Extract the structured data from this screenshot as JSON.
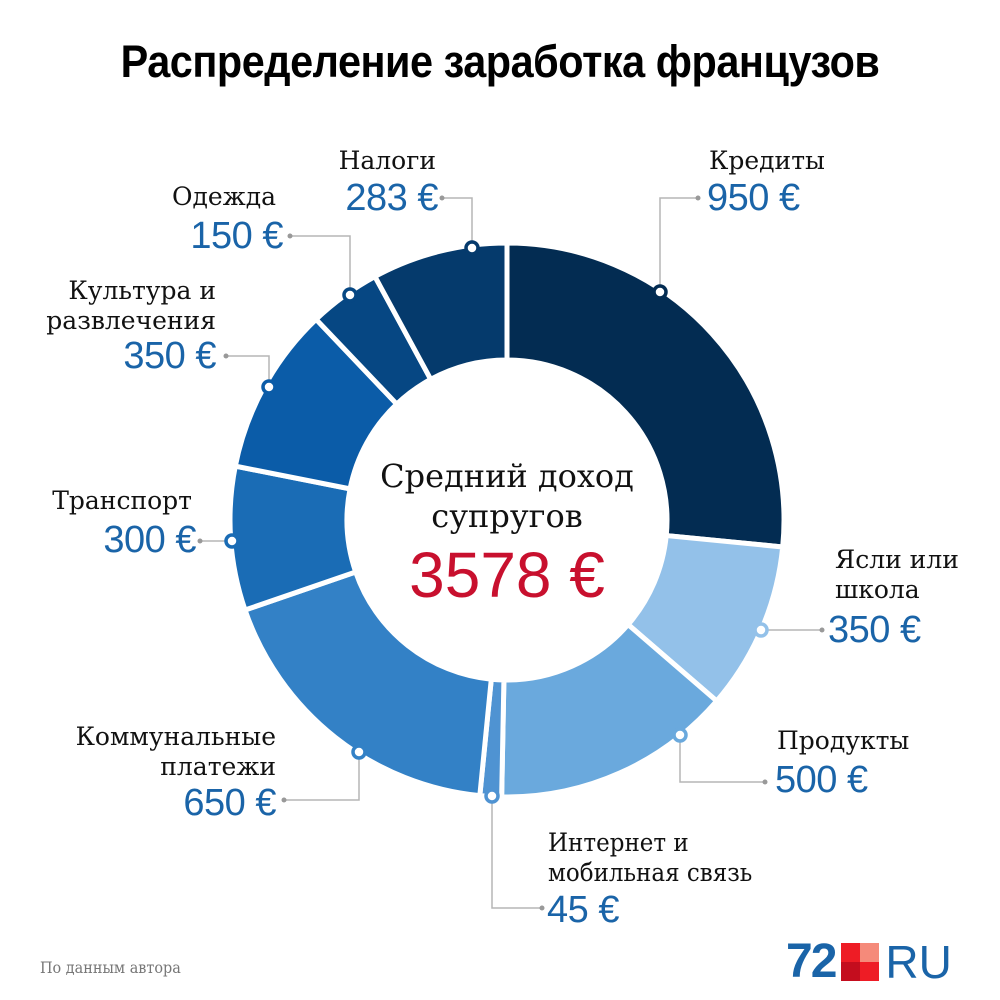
{
  "title": "Распределение заработка французов",
  "center": {
    "label_line1": "Средний доход",
    "label_line2": "супругов",
    "total": "3578 €"
  },
  "segments": [
    {
      "label": "Кредиты",
      "value_text": "950 €",
      "value": 950,
      "color": "#032c52"
    },
    {
      "label_line1": "Ясли или",
      "label_line2": "школа",
      "value_text": "350 €",
      "value": 350,
      "color": "#93c1e9"
    },
    {
      "label": "Продукты",
      "value_text": "500 €",
      "value": 500,
      "color": "#6aa9dd"
    },
    {
      "label_line1": "Интернет и",
      "label_line2": "мобильная связь",
      "value_text": "45 €",
      "value": 45,
      "color": "#4f93d2"
    },
    {
      "label_line1": "Коммунальные",
      "label_line2": "платежи",
      "value_text": "650 €",
      "value": 650,
      "color": "#3381c6"
    },
    {
      "label": "Транспорт",
      "value_text": "300 €",
      "value": 300,
      "color": "#1a6cb5"
    },
    {
      "label_line1": "Культура и",
      "label_line2": "развлечения",
      "value_text": "350 €",
      "value": 350,
      "color": "#0b5ca8"
    },
    {
      "label": "Одежда",
      "value_text": "150 €",
      "value": 150,
      "color": "#064783"
    },
    {
      "label": "Налоги",
      "value_text": "283 €",
      "value": 283,
      "color": "#053a6c"
    }
  ],
  "footer": {
    "source": "По данным автора",
    "logo_number": "72",
    "logo_suffix": "RU"
  },
  "colors": {
    "value_blue": "#1a64a8",
    "total_red": "#c8102e",
    "leader_gray": "#b5b5b5"
  },
  "chart_data": {
    "type": "pie",
    "subtype": "donut",
    "title": "Распределение заработка французов",
    "center_text": "Средний доход супругов 3578 €",
    "categories": [
      "Кредиты",
      "Ясли или школа",
      "Продукты",
      "Интернет и мобильная связь",
      "Коммунальные платежи",
      "Транспорт",
      "Культура и развлечения",
      "Одежда",
      "Налоги"
    ],
    "values": [
      950,
      350,
      500,
      45,
      650,
      300,
      350,
      150,
      283
    ],
    "unit": "€",
    "total": 3578,
    "start_angle": "12 o'clock",
    "direction": "clockwise",
    "source": "По данным автора"
  }
}
